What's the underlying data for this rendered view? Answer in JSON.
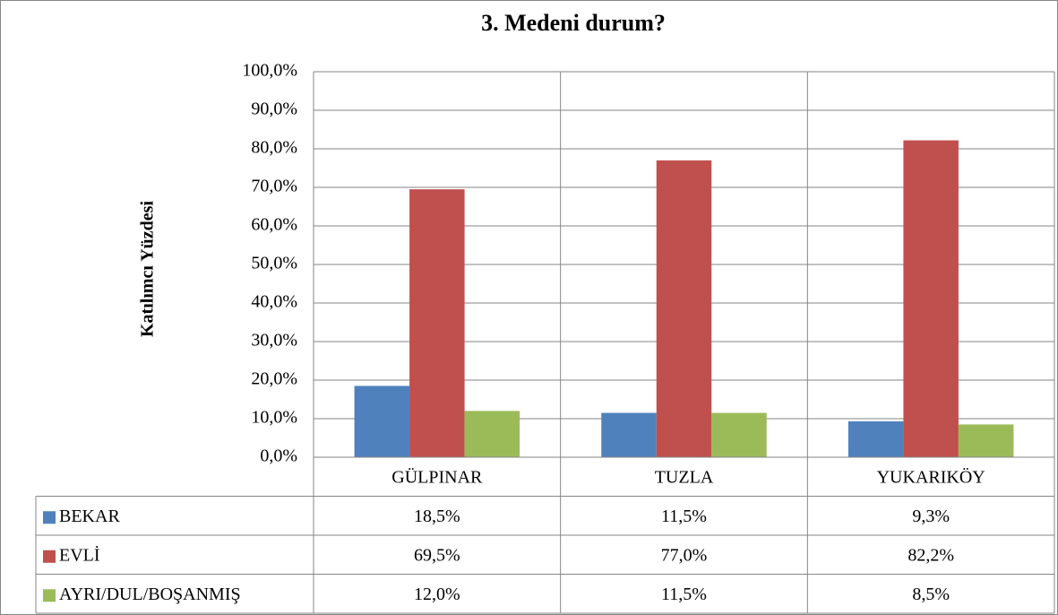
{
  "chart_data": {
    "type": "bar",
    "title": "3. Medeni durum?",
    "y_label": "Katılımcı Yüzdesi",
    "categories": [
      "GÜLPINAR",
      "TUZLA",
      "YUKARIKÖY"
    ],
    "series": [
      {
        "name": "BEKAR",
        "color": "#4f81bd",
        "values": [
          18.5,
          11.5,
          9.3
        ],
        "value_labels": [
          "18,5%",
          "11,5%",
          "9,3%"
        ]
      },
      {
        "name": "EVLİ",
        "color": "#c0504d",
        "values": [
          69.5,
          77.0,
          82.2
        ],
        "value_labels": [
          "69,5%",
          "77,0%",
          "82,2%"
        ]
      },
      {
        "name": "AYRI/DUL/BOŞANMIŞ",
        "color": "#9bbb59",
        "values": [
          12.0,
          11.5,
          8.5
        ],
        "value_labels": [
          "12,0%",
          "11,5%",
          "8,5%"
        ]
      }
    ],
    "ylim": [
      0,
      100
    ],
    "yticks": [
      {
        "value": 0,
        "label": "0,0%"
      },
      {
        "value": 10,
        "label": "10,0%"
      },
      {
        "value": 20,
        "label": "20,0%"
      },
      {
        "value": 30,
        "label": "30,0%"
      },
      {
        "value": 40,
        "label": "40,0%"
      },
      {
        "value": 50,
        "label": "50,0%"
      },
      {
        "value": 60,
        "label": "60,0%"
      },
      {
        "value": 70,
        "label": "70,0%"
      },
      {
        "value": 80,
        "label": "80,0%"
      },
      {
        "value": 90,
        "label": "90,0%"
      },
      {
        "value": 100,
        "label": "100,0%"
      }
    ],
    "grid": true,
    "data_table": true
  }
}
